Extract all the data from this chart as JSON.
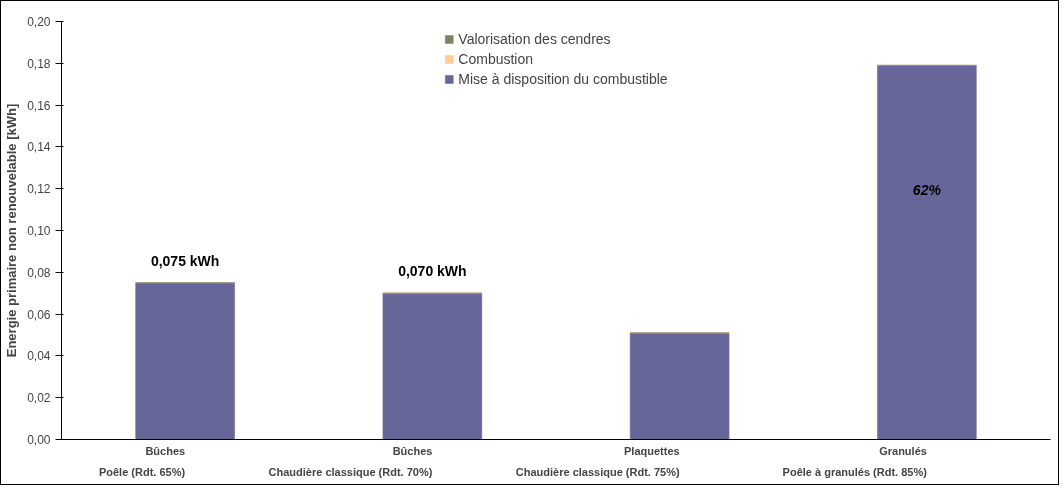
{
  "chart_data": {
    "type": "bar",
    "stacked": true,
    "ylabel": "Energie primaire non renouvelable [kWh]",
    "categories": [
      "Bûches\nPoêle (Rdt. 65%)",
      "Bûches\nChaudière classique (Rdt. 70%)",
      "Plaquettes\nChaudière classique (Rdt. 75%)",
      "Granulés\nPoêle à granulés (Rdt. 85%)"
    ],
    "series": [
      {
        "name": "Mise à disposition du combustible",
        "color": "#666699",
        "values": [
          0.075,
          0.07,
          0.051,
          0.179
        ],
        "value_labels": [
          "0,075 kWh",
          "0,070 kWh",
          null,
          null
        ]
      },
      {
        "name": "Combustion",
        "color": "#ffcc99",
        "values": [
          0,
          0,
          0,
          0
        ]
      },
      {
        "name": "Valorisation des cendres",
        "color": "#808060",
        "values": [
          0,
          0,
          0,
          0
        ]
      }
    ],
    "annotations": [
      "62%"
    ],
    "ylim": [
      0,
      0.2
    ],
    "yticks": [
      {
        "value": 0,
        "label": "0,00"
      },
      {
        "value": 0.02,
        "label": "0,02"
      },
      {
        "value": 0.04,
        "label": "0,04"
      },
      {
        "value": 0.06,
        "label": "0,06"
      },
      {
        "value": 0.08,
        "label": "0,08"
      },
      {
        "value": 0.1,
        "label": "0,10"
      },
      {
        "value": 0.12,
        "label": "0,12"
      },
      {
        "value": 0.14,
        "label": "0,14"
      },
      {
        "value": 0.16,
        "label": "0,16"
      },
      {
        "value": 0.18,
        "label": "0,18"
      },
      {
        "value": 0.2,
        "label": "0,20"
      }
    ],
    "grid": false,
    "legend": "top"
  }
}
